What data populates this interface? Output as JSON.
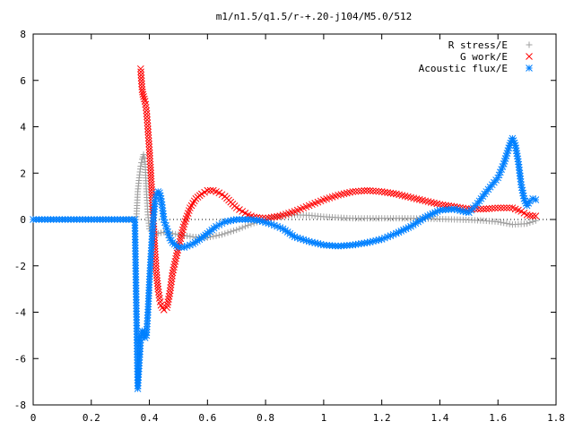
{
  "chart_data": {
    "type": "scatter",
    "title": "m1/n1.5/q1.5/r-+.20-j104/M5.0/512",
    "xlabel": "",
    "ylabel": "",
    "xlim": [
      0,
      1.8
    ],
    "ylim": [
      -8,
      8
    ],
    "grid": false,
    "legend_position": "top-right",
    "x_ticks": [
      "0",
      "0.2",
      "0.4",
      "0.6",
      "0.8",
      "1",
      "1.2",
      "1.4",
      "1.6",
      "1.8"
    ],
    "y_ticks": [
      "8",
      "6",
      "4",
      "2",
      "0",
      "-2",
      "-4",
      "-6",
      "-8"
    ],
    "series": [
      {
        "name": "R stress/E",
        "marker": "plus",
        "color": "#a0a0a0",
        "points": [
          [
            0.0,
            0.0
          ],
          [
            0.1,
            0.0
          ],
          [
            0.2,
            0.0
          ],
          [
            0.3,
            0.0
          ],
          [
            0.355,
            0.0
          ],
          [
            0.36,
            1.2
          ],
          [
            0.365,
            1.8
          ],
          [
            0.37,
            2.3
          ],
          [
            0.375,
            2.6
          ],
          [
            0.38,
            2.8
          ],
          [
            0.385,
            2.5
          ],
          [
            0.39,
            1.2
          ],
          [
            0.395,
            0.2
          ],
          [
            0.4,
            -0.4
          ],
          [
            0.41,
            -0.6
          ],
          [
            0.43,
            -0.6
          ],
          [
            0.45,
            -0.55
          ],
          [
            0.5,
            -0.65
          ],
          [
            0.55,
            -0.75
          ],
          [
            0.6,
            -0.78
          ],
          [
            0.65,
            -0.65
          ],
          [
            0.7,
            -0.45
          ],
          [
            0.75,
            -0.2
          ],
          [
            0.8,
            0.0
          ],
          [
            0.85,
            0.15
          ],
          [
            0.9,
            0.2
          ],
          [
            0.95,
            0.18
          ],
          [
            1.0,
            0.12
          ],
          [
            1.05,
            0.08
          ],
          [
            1.1,
            0.05
          ],
          [
            1.2,
            0.05
          ],
          [
            1.3,
            0.05
          ],
          [
            1.4,
            0.02
          ],
          [
            1.5,
            -0.02
          ],
          [
            1.55,
            -0.05
          ],
          [
            1.6,
            -0.1
          ],
          [
            1.65,
            -0.22
          ],
          [
            1.7,
            -0.18
          ],
          [
            1.73,
            -0.05
          ]
        ]
      },
      {
        "name": "G work/E",
        "marker": "cross",
        "color": "#ff0000",
        "points": [
          [
            0.37,
            6.5
          ],
          [
            0.372,
            6.1
          ],
          [
            0.375,
            5.6
          ],
          [
            0.378,
            5.4
          ],
          [
            0.38,
            5.3
          ],
          [
            0.385,
            5.1
          ],
          [
            0.39,
            4.7
          ],
          [
            0.395,
            3.9
          ],
          [
            0.4,
            3.0
          ],
          [
            0.405,
            2.0
          ],
          [
            0.41,
            0.8
          ],
          [
            0.415,
            -0.3
          ],
          [
            0.42,
            -1.5
          ],
          [
            0.425,
            -2.4
          ],
          [
            0.43,
            -3.0
          ],
          [
            0.435,
            -3.4
          ],
          [
            0.44,
            -3.7
          ],
          [
            0.45,
            -3.9
          ],
          [
            0.46,
            -3.8
          ],
          [
            0.47,
            -3.2
          ],
          [
            0.48,
            -2.3
          ],
          [
            0.5,
            -1.2
          ],
          [
            0.52,
            -0.2
          ],
          [
            0.54,
            0.5
          ],
          [
            0.56,
            0.9
          ],
          [
            0.58,
            1.1
          ],
          [
            0.6,
            1.25
          ],
          [
            0.62,
            1.25
          ],
          [
            0.64,
            1.15
          ],
          [
            0.66,
            1.0
          ],
          [
            0.68,
            0.75
          ],
          [
            0.7,
            0.5
          ],
          [
            0.72,
            0.35
          ],
          [
            0.74,
            0.2
          ],
          [
            0.76,
            0.1
          ],
          [
            0.8,
            0.05
          ],
          [
            0.85,
            0.15
          ],
          [
            0.9,
            0.35
          ],
          [
            0.95,
            0.6
          ],
          [
            1.0,
            0.85
          ],
          [
            1.05,
            1.05
          ],
          [
            1.1,
            1.2
          ],
          [
            1.15,
            1.25
          ],
          [
            1.2,
            1.2
          ],
          [
            1.25,
            1.1
          ],
          [
            1.3,
            0.95
          ],
          [
            1.35,
            0.8
          ],
          [
            1.4,
            0.65
          ],
          [
            1.45,
            0.55
          ],
          [
            1.5,
            0.45
          ],
          [
            1.55,
            0.45
          ],
          [
            1.6,
            0.5
          ],
          [
            1.65,
            0.5
          ],
          [
            1.68,
            0.35
          ],
          [
            1.7,
            0.2
          ],
          [
            1.72,
            0.15
          ],
          [
            1.73,
            0.15
          ]
        ]
      },
      {
        "name": "Acoustic flux/E",
        "marker": "star",
        "color": "#0080ff",
        "points": [
          [
            0.0,
            0.0
          ],
          [
            0.05,
            0.0
          ],
          [
            0.1,
            0.0
          ],
          [
            0.15,
            0.0
          ],
          [
            0.2,
            0.0
          ],
          [
            0.25,
            0.0
          ],
          [
            0.3,
            0.0
          ],
          [
            0.35,
            0.0
          ],
          [
            0.36,
            -7.3
          ],
          [
            0.37,
            -5.2
          ],
          [
            0.375,
            -4.8
          ],
          [
            0.38,
            -4.9
          ],
          [
            0.385,
            -5.1
          ],
          [
            0.39,
            -5.0
          ],
          [
            0.395,
            -4.0
          ],
          [
            0.4,
            -2.7
          ],
          [
            0.405,
            -1.6
          ],
          [
            0.41,
            -0.6
          ],
          [
            0.415,
            0.2
          ],
          [
            0.42,
            0.8
          ],
          [
            0.425,
            1.1
          ],
          [
            0.43,
            1.2
          ],
          [
            0.435,
            1.15
          ],
          [
            0.44,
            0.9
          ],
          [
            0.445,
            0.5
          ],
          [
            0.45,
            0.0
          ],
          [
            0.46,
            -0.4
          ],
          [
            0.47,
            -0.8
          ],
          [
            0.48,
            -1.0
          ],
          [
            0.5,
            -1.2
          ],
          [
            0.52,
            -1.2
          ],
          [
            0.55,
            -1.05
          ],
          [
            0.58,
            -0.8
          ],
          [
            0.6,
            -0.6
          ],
          [
            0.63,
            -0.3
          ],
          [
            0.66,
            -0.1
          ],
          [
            0.7,
            0.0
          ],
          [
            0.75,
            0.0
          ],
          [
            0.78,
            -0.05
          ],
          [
            0.82,
            -0.2
          ],
          [
            0.86,
            -0.4
          ],
          [
            0.9,
            -0.75
          ],
          [
            0.95,
            -0.95
          ],
          [
            1.0,
            -1.1
          ],
          [
            1.05,
            -1.15
          ],
          [
            1.1,
            -1.1
          ],
          [
            1.15,
            -1.0
          ],
          [
            1.2,
            -0.85
          ],
          [
            1.25,
            -0.6
          ],
          [
            1.3,
            -0.3
          ],
          [
            1.35,
            0.1
          ],
          [
            1.4,
            0.4
          ],
          [
            1.45,
            0.45
          ],
          [
            1.48,
            0.35
          ],
          [
            1.5,
            0.3
          ],
          [
            1.53,
            0.7
          ],
          [
            1.56,
            1.2
          ],
          [
            1.6,
            1.8
          ],
          [
            1.62,
            2.4
          ],
          [
            1.64,
            3.2
          ],
          [
            1.65,
            3.5
          ],
          [
            1.66,
            3.2
          ],
          [
            1.67,
            2.5
          ],
          [
            1.68,
            1.5
          ],
          [
            1.69,
            0.9
          ],
          [
            1.7,
            0.6
          ],
          [
            1.71,
            0.8
          ],
          [
            1.72,
            0.9
          ],
          [
            1.73,
            0.85
          ]
        ]
      }
    ]
  }
}
